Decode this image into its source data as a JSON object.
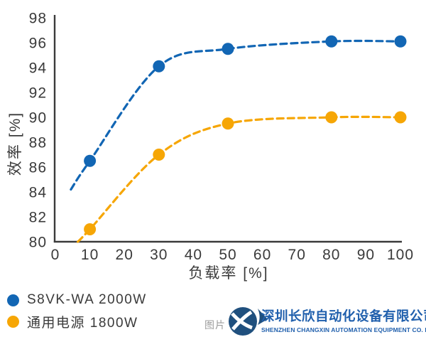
{
  "page": {
    "background": "#FFFFFF"
  },
  "chart_data": {
    "type": "line",
    "xlabel": "负载率 [%]",
    "ylabel": "效率 [%]",
    "x": [
      10,
      30,
      50,
      80,
      100
    ],
    "series": [
      {
        "name": "S8VK-WA 2000W",
        "color": "#1266B4",
        "values": [
          86.5,
          94.1,
          95.5,
          96.1,
          96.1
        ],
        "line_start": {
          "x": 4.5,
          "y": 84.2
        }
      },
      {
        "name": "通用电源 1800W",
        "color": "#F6A605",
        "values": [
          81,
          87,
          89.5,
          90,
          90
        ],
        "line_start": {
          "x": 6.5,
          "y": 80
        }
      }
    ],
    "xticks": [
      0,
      10,
      20,
      30,
      40,
      50,
      60,
      70,
      80,
      90,
      100
    ],
    "yticks": [
      80,
      82,
      84,
      86,
      88,
      90,
      92,
      94,
      96,
      98
    ],
    "xlim": [
      0,
      100
    ],
    "ylim": [
      80,
      98
    ],
    "grid": false,
    "line_style": "dashed",
    "marker": "circle",
    "legend_position": "bottom-left"
  },
  "legend": {
    "items": [
      {
        "label": "S8VK-WA 2000W",
        "color": "#1266B4"
      },
      {
        "label": "通用电源 1800W",
        "color": "#F6A605"
      }
    ]
  },
  "footer": {
    "watermark_label": "图片",
    "company_name_zh": "深圳长欣自动化设备有限公司",
    "company_name_en": "SHENZHEN CHANGXIN AUTOMATION EQUIPMENT CO. LTD",
    "brand_blue": "#2160AD",
    "logo_navy": "#20507E"
  },
  "colors": {
    "axis_text": "#3A3A3A",
    "axis_line": "#3A3A3A"
  }
}
